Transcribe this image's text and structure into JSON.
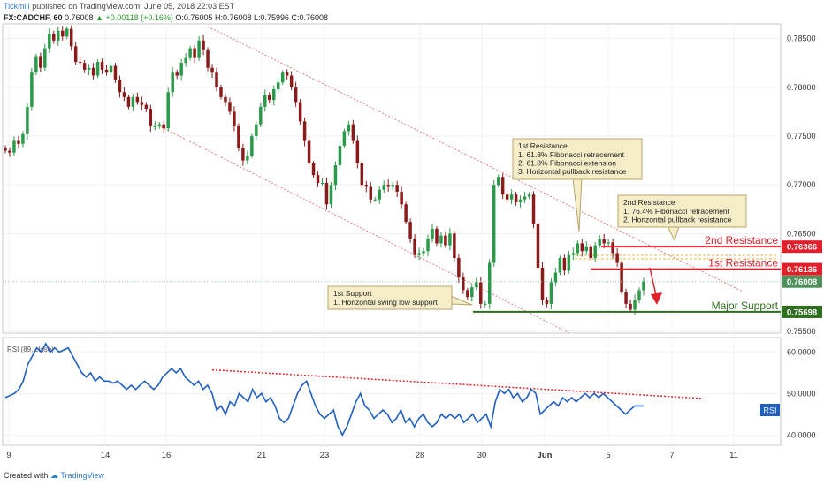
{
  "header": {
    "brand": "Tickmill",
    "published": "published on TradingView.com, June 05, 2018 22:03 EST",
    "symbol": "FX:CADCHF, 60",
    "last": "0.76008",
    "change": "▲ +0.00118 (+0.16%)",
    "ohlc": "O:0.76005  H:0.76008  L:0.75996  C:0.76008"
  },
  "footer": {
    "created": "Created with",
    "brand": "TradingView"
  },
  "colors": {
    "up": "#2a9a4a",
    "down": "#8b1a1a",
    "resistance": "#e0202a",
    "support": "#2e6e1e",
    "rsi": "#1f5fbf",
    "channel": "#e47a7a"
  },
  "chart_data": [
    {
      "type": "candlestick",
      "symbol": "FX:CADCHF",
      "timeframe": "60",
      "ylim": [
        0.7548,
        0.7865
      ],
      "y_ticks": [
        0.785,
        0.78,
        0.775,
        0.77,
        0.765,
        0.755
      ],
      "y_tick_labels": [
        "0.78500",
        "0.78000",
        "0.77500",
        "0.77000",
        "0.76500",
        "0.75500"
      ],
      "x_ticks": [
        "9",
        "14",
        "16",
        "21",
        "23",
        "28",
        "30",
        "Jun",
        "5",
        "7",
        "11"
      ],
      "price_path": [
        [
          0.7735,
          0.7733,
          0.7745,
          0.7742,
          0.7752,
          0.778,
          0.7815,
          0.7832,
          0.782,
          0.784,
          0.7855,
          0.7848,
          0.7858,
          0.7852,
          0.786,
          0.7842,
          0.7826,
          0.7825,
          0.7818,
          0.782,
          0.7812,
          0.7826,
          0.7818,
          0.7815,
          0.7822,
          0.7808,
          0.7795,
          0.779,
          0.778,
          0.779,
          0.7785,
          0.7782,
          0.7778,
          0.776
        ],
        [
          0.776,
          0.7762,
          0.7758,
          0.7795,
          0.7815,
          0.7812,
          0.7825,
          0.783,
          0.784,
          0.783,
          0.7848,
          0.7838,
          0.782,
          0.7815,
          0.78,
          0.779,
          0.7785,
          0.7775,
          0.776,
          0.7738,
          0.7725,
          0.773,
          0.775,
          0.7762,
          0.778,
          0.7792,
          0.7787,
          0.7798,
          0.7805,
          0.7815,
          0.7812,
          0.78,
          0.7785,
          0.7765,
          0.7745,
          0.7722,
          0.771,
          0.7702
        ],
        [
          0.7702,
          0.768,
          0.77,
          0.772,
          0.774,
          0.7755,
          0.7762,
          0.7745,
          0.7722,
          0.77,
          0.7698,
          0.7685,
          0.7685,
          0.7695,
          0.77,
          0.7698,
          0.77,
          0.7693,
          0.768,
          0.7662,
          0.7645,
          0.7628,
          0.763,
          0.7632,
          0.7645,
          0.7655,
          0.764,
          0.7648,
          0.7638,
          0.765,
          0.7625,
          0.7605,
          0.7592,
          0.7585,
          0.7595,
          0.76,
          0.7578
        ],
        [
          0.7578,
          0.762,
          0.77,
          0.7708,
          0.769,
          0.7685,
          0.769,
          0.7682,
          0.7685,
          0.7688,
          0.769,
          0.766,
          0.7615,
          0.7582,
          0.7578,
          0.76,
          0.761,
          0.7625,
          0.7612,
          0.7628,
          0.763,
          0.764,
          0.7632,
          0.7637,
          0.7625,
          0.7638,
          0.7644,
          0.764,
          0.7641,
          0.763,
          0.762,
          0.759,
          0.7578,
          0.7572,
          0.7582,
          0.7592,
          0.7601
        ]
      ],
      "lines": [
        {
          "name": "2nd Resistance",
          "value": 0.76366,
          "label": "0.76366"
        },
        {
          "name": "1st Resistance",
          "value": 0.76136,
          "label": "0.76136"
        },
        {
          "name": "current",
          "value": 0.76008,
          "label": "0.76008"
        },
        {
          "name": "Major Support",
          "value": 0.75698,
          "label": "0.75698"
        }
      ],
      "annotations": {
        "first_resistance": {
          "title": "1st Resistance",
          "lines": [
            "1. 61.8% Fibonacci retracement",
            "2. 61.8% Fibonacci extension",
            "3. Horizontal pullback resistance"
          ]
        },
        "second_resistance": {
          "title": "2nd Resistance",
          "lines": [
            "1. 76.4% Fibonacci retracement",
            "2. Horizontal pullback resistance"
          ]
        },
        "first_support": {
          "title": "1st Support",
          "lines": [
            "1. Horizontal swing low support"
          ]
        },
        "line_labels": {
          "second_resistance": "2nd Resistance",
          "first_resistance": "1st Resistance",
          "major_support": "Major Support"
        }
      }
    },
    {
      "type": "line",
      "title": "RSI (89, close)",
      "ylim": [
        37.5,
        63.5
      ],
      "y_ticks": [
        60,
        50,
        40
      ],
      "y_tick_labels": [
        "60.0000",
        "50.0000",
        "40.0000"
      ],
      "badge": "RSI",
      "rsi_path": [
        49,
        49.5,
        50,
        51,
        53,
        57,
        59,
        61,
        60,
        62,
        60,
        61,
        60,
        60.5,
        61,
        59,
        57,
        55,
        54,
        55,
        53,
        54,
        53,
        53,
        52.5,
        53,
        52,
        51,
        52,
        51,
        52,
        53,
        52,
        51,
        52,
        54,
        55,
        56,
        55,
        56,
        54,
        53,
        52,
        53,
        51,
        52,
        50,
        46,
        47,
        45,
        48,
        47,
        50,
        49,
        48,
        51,
        49,
        50,
        48,
        49,
        47,
        44,
        43,
        44,
        47,
        50,
        52,
        53,
        50,
        47,
        45,
        44,
        45,
        46,
        42,
        40,
        42,
        45,
        48,
        50,
        47,
        46,
        44,
        45,
        46,
        45,
        43,
        44,
        46,
        43,
        44,
        42,
        44,
        45,
        43,
        42,
        43,
        45,
        44,
        45,
        44,
        45,
        43,
        44,
        45,
        43,
        44,
        45,
        42,
        48,
        51,
        50,
        51,
        49,
        50,
        48,
        49,
        51,
        50,
        45,
        46,
        47,
        48,
        47,
        49,
        48,
        49,
        48,
        49,
        50,
        49,
        50,
        49,
        50,
        49,
        48,
        47,
        46,
        45,
        46,
        47,
        47,
        47
      ]
    }
  ]
}
